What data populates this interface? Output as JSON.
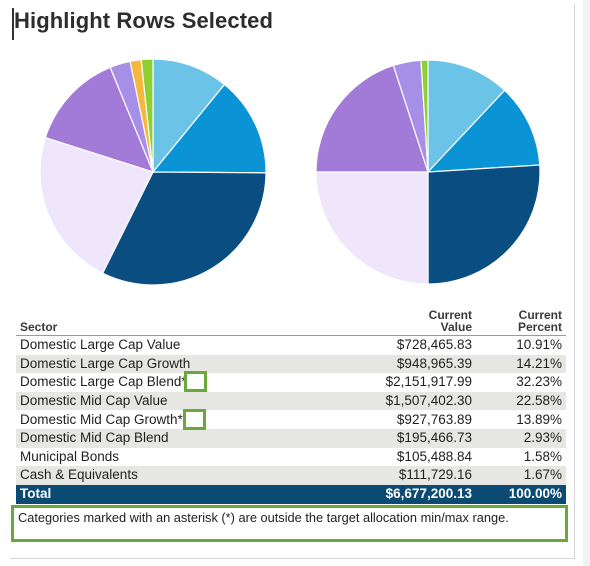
{
  "title": "Highlight Rows Selected",
  "table": {
    "headers": {
      "sector": "Sector",
      "value_line1": "Current",
      "value_line2": "Value",
      "percent_line1": "Current",
      "percent_line2": "Percent"
    },
    "rows": [
      {
        "sector": "Domestic Large Cap Value",
        "value": "$728,465.83",
        "percent": "10.91%"
      },
      {
        "sector": "Domestic Large Cap Growth",
        "value": "$948,965.39",
        "percent": "14.21%"
      },
      {
        "sector": "Domestic Large Cap Blend*",
        "value": "$2,151,917.99",
        "percent": "32.23%"
      },
      {
        "sector": "Domestic Mid Cap Value",
        "value": "$1,507,402.30",
        "percent": "22.58%"
      },
      {
        "sector": "Domestic Mid Cap Growth*",
        "value": "$927,763.89",
        "percent": "13.89%"
      },
      {
        "sector": "Domestic Mid Cap Blend",
        "value": "$195,466.73",
        "percent": "2.93%"
      },
      {
        "sector": "Municipal Bonds",
        "value": "$105,488.84",
        "percent": "1.58%"
      },
      {
        "sector": "Cash & Equivalents",
        "value": "$111,729.16",
        "percent": "1.67%"
      }
    ],
    "total": {
      "label": "Total",
      "value": "$6,677,200.13",
      "percent": "100.00%"
    }
  },
  "footnote": "Categories marked with an asterisk (*) are outside the target allocation min/max range.",
  "colors": {
    "domestic_large_cap_value": "#6cc3e8",
    "domestic_large_cap_growth": "#0b94d5",
    "domestic_large_cap_blend": "#0a4d80",
    "domestic_mid_cap_value": "#efe6fb",
    "domestic_mid_cap_growth": "#a27bd8",
    "domestic_mid_cap_blend": "#a68fe6",
    "municipal_bonds": "#f6b83c",
    "cash_equivalents": "#8dcf35",
    "total_row_bg": "#0a4a73",
    "highlight_border": "#6aa83b"
  },
  "chart_data": [
    {
      "type": "pie",
      "categories": [
        "Domestic Large Cap Value",
        "Domestic Large Cap Growth",
        "Domestic Large Cap Blend",
        "Domestic Mid Cap Value",
        "Domestic Mid Cap Growth",
        "Domestic Mid Cap Blend",
        "Municipal Bonds",
        "Cash & Equivalents"
      ],
      "values": [
        10.91,
        14.21,
        32.23,
        22.58,
        13.89,
        2.93,
        1.58,
        1.67
      ],
      "colors": [
        "#6cc3e8",
        "#0b94d5",
        "#0a4d80",
        "#efe6fb",
        "#a27bd8",
        "#a68fe6",
        "#f6b83c",
        "#8dcf35"
      ]
    },
    {
      "type": "pie",
      "categories": [
        "Domestic Large Cap Value",
        "Domestic Large Cap Growth",
        "Domestic Large Cap Blend",
        "Domestic Mid Cap Value",
        "Domestic Mid Cap Growth",
        "Domestic Mid Cap Blend",
        "Cash & Equivalents"
      ],
      "values": [
        12,
        12,
        26,
        25,
        20,
        4,
        1
      ],
      "colors": [
        "#6cc3e8",
        "#0b94d5",
        "#0a4d80",
        "#efe6fb",
        "#a27bd8",
        "#a68fe6",
        "#8dcf35"
      ]
    }
  ]
}
